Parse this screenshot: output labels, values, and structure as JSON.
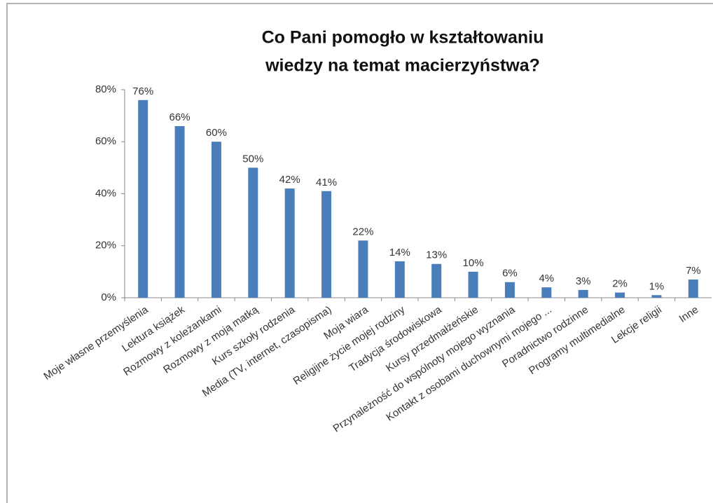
{
  "chart_data": {
    "type": "bar",
    "title": [
      "Co Pani pomogło w kształtowaniu",
      "wiedzy na temat macierzyństwa?"
    ],
    "categories": [
      "Moje własne przemyślenia",
      "Lektura książek",
      "Rozmowy z koleżankami",
      "Rozmowy z moją matką",
      "Kurs szkoły rodzenia",
      "Media (TV, internet, czasopisma)",
      "Moja wiara",
      "Religijne życie mojej rodziny",
      "Tradycja środowiskowa",
      "Kursy przedmałżeńskie",
      "Przynależność do wspólnoty mojego wyznania",
      "Kontakt z osobami duchownymi mojego ...",
      "Poradnictwo rodzinne",
      "Programy multimedialne",
      "Lekcje religii",
      "Inne"
    ],
    "values": [
      76,
      66,
      60,
      50,
      42,
      41,
      22,
      14,
      13,
      10,
      6,
      4,
      3,
      2,
      1,
      7
    ],
    "value_labels": [
      "76%",
      "66%",
      "60%",
      "50%",
      "42%",
      "41%",
      "22%",
      "14%",
      "13%",
      "10%",
      "6%",
      "4%",
      "3%",
      "2%",
      "1%",
      "7%"
    ],
    "color": "#4a7ebb",
    "ylim": [
      0,
      80
    ],
    "yticks": [
      {
        "value": 0,
        "label": "0%"
      },
      {
        "value": 20,
        "label": "20%"
      },
      {
        "value": 40,
        "label": "40%"
      },
      {
        "value": 60,
        "label": "60%"
      },
      {
        "value": 80,
        "label": "80%"
      }
    ],
    "grid": false
  }
}
